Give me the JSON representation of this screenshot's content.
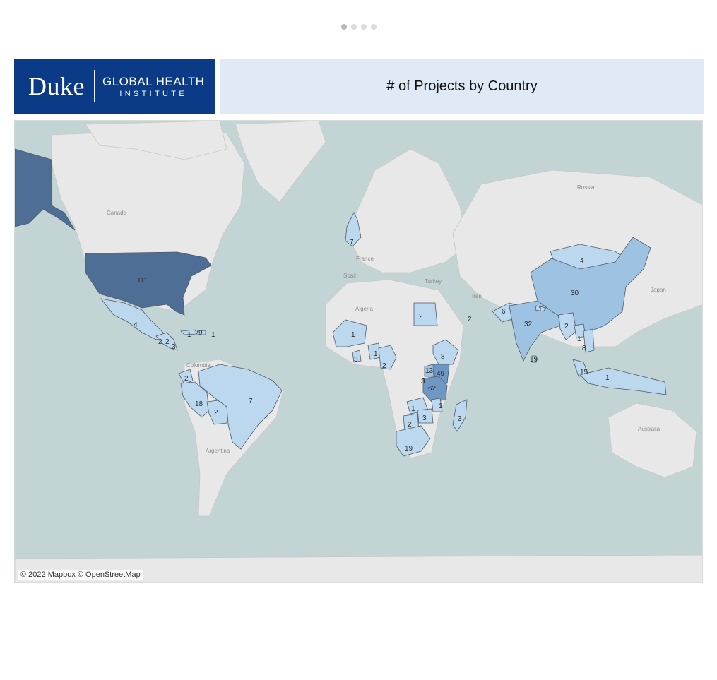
{
  "pager": {
    "count": 4,
    "active_index": 0
  },
  "header": {
    "logo": {
      "wordmark": "Duke",
      "line1": "GLOBAL HEALTH",
      "line2": "INSTITUTE",
      "bg_color": "#0b3a86"
    },
    "title": "# of Projects by Country",
    "title_bg_color": "#dfeaf6"
  },
  "map": {
    "attribution": "© 2022 Mapbox © OpenStreetMap",
    "colors": {
      "ocean": "#c3d4d4",
      "land": "#e8e8e8",
      "low": "#bcd8ef",
      "mid": "#9ec2e2",
      "high": "#6e97c4",
      "max": "#4e6e95"
    },
    "base_labels": [
      "Canada",
      "Russia",
      "France",
      "Spain",
      "Turkey",
      "Algeria",
      "Iran",
      "Japan",
      "Colombia",
      "Argentina",
      "Australia"
    ],
    "counts": [
      {
        "country": "United States",
        "value": 111
      },
      {
        "country": "Mexico",
        "value": 4
      },
      {
        "country": "Guatemala",
        "value": 2
      },
      {
        "country": "Honduras",
        "value": 2
      },
      {
        "country": "Nicaragua",
        "value": 3
      },
      {
        "country": "Cuba",
        "value": 1
      },
      {
        "country": "Haiti",
        "value": 9
      },
      {
        "country": "Dominican Republic",
        "value": 1
      },
      {
        "country": "Ecuador",
        "value": 2
      },
      {
        "country": "Peru",
        "value": 18
      },
      {
        "country": "Bolivia",
        "value": 2
      },
      {
        "country": "Brazil",
        "value": 7
      },
      {
        "country": "United Kingdom",
        "value": 7
      },
      {
        "country": "Mali",
        "value": 1
      },
      {
        "country": "Liberia",
        "value": 3
      },
      {
        "country": "Ghana",
        "value": 1
      },
      {
        "country": "Nigeria",
        "value": 2
      },
      {
        "country": "Egypt",
        "value": 2
      },
      {
        "country": "United Arab Emirates",
        "value": 2
      },
      {
        "country": "Ethiopia",
        "value": 8
      },
      {
        "country": "Uganda",
        "value": 13
      },
      {
        "country": "Kenya",
        "value": 49
      },
      {
        "country": "Tanzania",
        "value": 62
      },
      {
        "country": "Rwanda",
        "value": 3
      },
      {
        "country": "Malawi",
        "value": 1
      },
      {
        "country": "Zambia",
        "value": 1
      },
      {
        "country": "Zimbabwe",
        "value": 3
      },
      {
        "country": "Botswana",
        "value": 2
      },
      {
        "country": "South Africa",
        "value": 19
      },
      {
        "country": "Madagascar",
        "value": 3
      },
      {
        "country": "Mongolia",
        "value": 4
      },
      {
        "country": "China",
        "value": 30
      },
      {
        "country": "India",
        "value": 32
      },
      {
        "country": "Pakistan",
        "value": 6
      },
      {
        "country": "Nepal",
        "value": 1
      },
      {
        "country": "Myanmar",
        "value": 2
      },
      {
        "country": "Laos",
        "value": 1
      },
      {
        "country": "Vietnam",
        "value": 8
      },
      {
        "country": "Sri Lanka",
        "value": 19
      },
      {
        "country": "Malaysia",
        "value": 15
      },
      {
        "country": "Indonesia",
        "value": 1
      }
    ]
  }
}
